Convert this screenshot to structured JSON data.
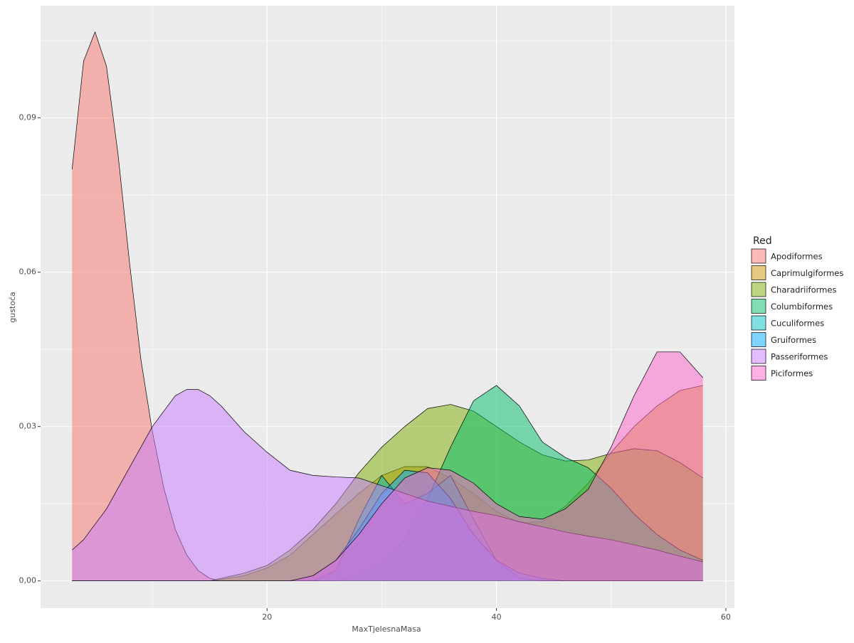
{
  "chart_data": {
    "type": "density",
    "x_label": "MaxTjelesnaMasa",
    "y_label": "gustoća",
    "legend_title": "Red",
    "legend": "right",
    "grid": true,
    "xlim": [
      0.25,
      60.75
    ],
    "ylim": [
      -0.0053,
      0.1118
    ],
    "xticks": [
      20,
      40,
      60
    ],
    "yticks": [
      {
        "value": 0,
        "label": "0,00"
      },
      {
        "value": 0.03,
        "label": "0,03"
      },
      {
        "value": 0.06,
        "label": "0,06"
      },
      {
        "value": 0.09,
        "label": "0,09"
      }
    ],
    "x": [
      3,
      4,
      5,
      6,
      7,
      8,
      9,
      10,
      11,
      12,
      13,
      14,
      15,
      16,
      18,
      20,
      22,
      24,
      26,
      28,
      30,
      32,
      34,
      36,
      38,
      40,
      42,
      44,
      46,
      48,
      50,
      52,
      54,
      56,
      58
    ],
    "series": [
      {
        "name": "Apodiformes",
        "color": "#F8766D",
        "values": [
          0.08,
          0.101,
          0.1067,
          0.1,
          0.083,
          0.062,
          0.043,
          0.029,
          0.018,
          0.01,
          0.005,
          0.002,
          0.0005,
          0,
          0,
          0,
          0,
          0,
          0,
          0,
          0,
          0,
          0,
          0,
          0,
          0,
          0,
          0,
          0,
          0,
          0,
          0,
          0,
          0,
          0
        ]
      },
      {
        "name": "Caprimulgiformes",
        "color": "#CD9600",
        "values": [
          0,
          0,
          0,
          0,
          0,
          0,
          0,
          0,
          0,
          0,
          0,
          0,
          0,
          0.0003,
          0.001,
          0.0025,
          0.005,
          0.009,
          0.013,
          0.017,
          0.0205,
          0.0222,
          0.0222,
          0.02,
          0.017,
          0.0135,
          0.0113,
          0.0115,
          0.0145,
          0.019,
          0.025,
          0.03,
          0.034,
          0.037,
          0.038
        ]
      },
      {
        "name": "Charadriiformes",
        "color": "#7CAE00",
        "values": [
          0,
          0,
          0,
          0,
          0,
          0,
          0,
          0,
          0,
          0,
          0,
          0,
          0,
          0.0005,
          0.0015,
          0.003,
          0.006,
          0.01,
          0.015,
          0.021,
          0.026,
          0.03,
          0.0335,
          0.0343,
          0.033,
          0.03,
          0.027,
          0.0245,
          0.0233,
          0.0235,
          0.0248,
          0.0257,
          0.0253,
          0.023,
          0.02
        ]
      },
      {
        "name": "Columbiformes",
        "color": "#00BE67",
        "values": [
          0,
          0,
          0,
          0,
          0,
          0,
          0,
          0,
          0,
          0,
          0,
          0,
          0,
          0,
          0,
          0,
          0,
          0,
          0,
          0.001,
          0.003,
          0.008,
          0.016,
          0.026,
          0.035,
          0.038,
          0.034,
          0.027,
          0.024,
          0.022,
          0.018,
          0.013,
          0.009,
          0.006,
          0.004
        ]
      },
      {
        "name": "Cuculiformes",
        "color": "#00BFC4",
        "values": [
          0,
          0,
          0,
          0,
          0,
          0,
          0,
          0,
          0,
          0,
          0,
          0,
          0,
          0,
          0,
          0,
          0,
          0,
          0.002,
          0.012,
          0.0205,
          0.015,
          0.017,
          0.0205,
          0.012,
          0.004,
          0.0005,
          0,
          0,
          0,
          0,
          0,
          0,
          0,
          0
        ]
      },
      {
        "name": "Gruiformes",
        "color": "#00A9FF",
        "values": [
          0,
          0,
          0,
          0,
          0,
          0,
          0,
          0,
          0,
          0,
          0,
          0,
          0,
          0,
          0,
          0,
          0,
          0.001,
          0.004,
          0.01,
          0.017,
          0.0215,
          0.021,
          0.016,
          0.009,
          0.004,
          0.0015,
          0.0005,
          0,
          0,
          0,
          0,
          0,
          0,
          0
        ]
      },
      {
        "name": "Passeriformes",
        "color": "#C77CFF",
        "values": [
          0.006,
          0.008,
          0.011,
          0.014,
          0.018,
          0.022,
          0.026,
          0.03,
          0.033,
          0.036,
          0.0372,
          0.0372,
          0.036,
          0.034,
          0.029,
          0.025,
          0.0215,
          0.0205,
          0.0202,
          0.02,
          0.0185,
          0.017,
          0.0155,
          0.0145,
          0.0135,
          0.0127,
          0.0115,
          0.0105,
          0.0095,
          0.0087,
          0.008,
          0.007,
          0.006,
          0.0048,
          0.0037
        ]
      },
      {
        "name": "Piciformes",
        "color": "#FF61CC",
        "values": [
          0,
          0,
          0,
          0,
          0,
          0,
          0,
          0,
          0,
          0,
          0,
          0,
          0,
          0,
          0,
          0,
          0,
          0.001,
          0.004,
          0.009,
          0.015,
          0.02,
          0.022,
          0.0215,
          0.019,
          0.015,
          0.0125,
          0.012,
          0.014,
          0.0178,
          0.026,
          0.036,
          0.0445,
          0.0445,
          0.0395
        ]
      }
    ]
  }
}
